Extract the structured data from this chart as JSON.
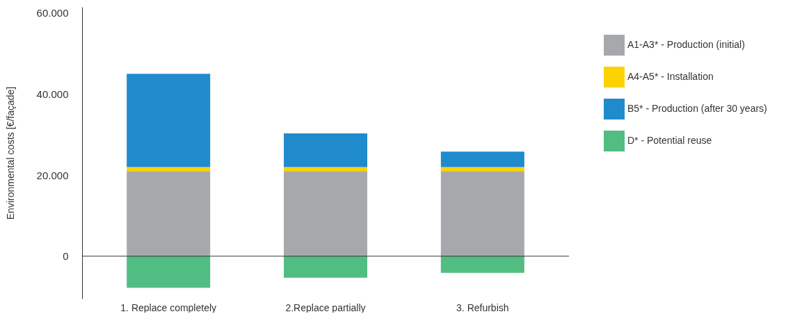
{
  "chart_data": {
    "type": "bar",
    "stacked": true,
    "ylabel": "Environmental costs [€/façade]",
    "categories": [
      "1. Replace completely",
      "2.Replace partially",
      "3. Refurbish"
    ],
    "series": [
      {
        "name": "A1-A3* - Production (initial)",
        "color": "#a7a8ab",
        "values": [
          21000,
          21000,
          21000
        ]
      },
      {
        "name": "A4-A5* - Installation",
        "color": "#fcd200",
        "values": [
          1000,
          1000,
          1000
        ]
      },
      {
        "name": "B5* - Production (after 30 years)",
        "color": "#1f8bcd",
        "values": [
          23000,
          8300,
          3800
        ]
      },
      {
        "name": "D* - Potential reuse",
        "color": "#52bd82",
        "values": [
          -7800,
          -5300,
          -4100
        ]
      }
    ],
    "ylim": [
      -10500,
      61500
    ],
    "yticks": [
      {
        "value": 0,
        "label": "0"
      },
      {
        "value": 20000,
        "label": "20.000"
      },
      {
        "value": 40000,
        "label": "40.000"
      },
      {
        "value": 60000,
        "label": "60.000"
      }
    ],
    "ref_lines": [
      {
        "axis": "y",
        "value": 0,
        "color": "#333333"
      }
    ],
    "grid": false,
    "legend": "right"
  }
}
